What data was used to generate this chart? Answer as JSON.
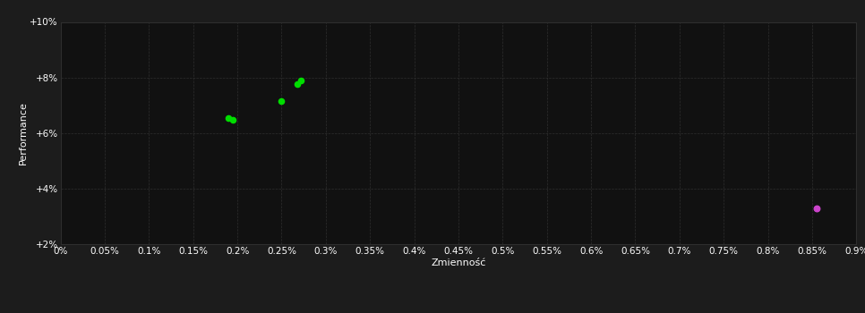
{
  "background_color": "#1c1c1c",
  "plot_bg_color": "#111111",
  "grid_color": "#2e2e2e",
  "grid_style": "--",
  "xlabel": "Zmienność",
  "ylabel": "Performance",
  "xlabel_color": "#ffffff",
  "ylabel_color": "#ffffff",
  "tick_color": "#ffffff",
  "xlim": [
    0.0,
    0.009
  ],
  "ylim": [
    0.02,
    0.1
  ],
  "xticks": [
    0.0,
    0.0005,
    0.001,
    0.0015,
    0.002,
    0.0025,
    0.003,
    0.0035,
    0.004,
    0.0045,
    0.005,
    0.0055,
    0.006,
    0.0065,
    0.007,
    0.0075,
    0.008,
    0.0085,
    0.009
  ],
  "xtick_labels": [
    "0%",
    "0.05%",
    "0.1%",
    "0.15%",
    "0.2%",
    "0.25%",
    "0.3%",
    "0.35%",
    "0.4%",
    "0.45%",
    "0.5%",
    "0.55%",
    "0.6%",
    "0.65%",
    "0.7%",
    "0.75%",
    "0.8%",
    "0.85%",
    "0.9%"
  ],
  "yticks": [
    0.02,
    0.04,
    0.06,
    0.08,
    0.1
  ],
  "ytick_labels": [
    "+2%",
    "+4%",
    "+6%",
    "+8%",
    "+10%"
  ],
  "green_points": [
    [
      0.0019,
      0.0655
    ],
    [
      0.00195,
      0.0648
    ],
    [
      0.0025,
      0.0715
    ],
    [
      0.00268,
      0.0775
    ],
    [
      0.00272,
      0.079
    ]
  ],
  "magenta_points": [
    [
      0.00855,
      0.033
    ]
  ],
  "green_color": "#00dd00",
  "magenta_color": "#cc44cc",
  "point_size": 20,
  "magenta_size": 22,
  "font_size_labels": 8,
  "font_size_ticks": 7.5
}
